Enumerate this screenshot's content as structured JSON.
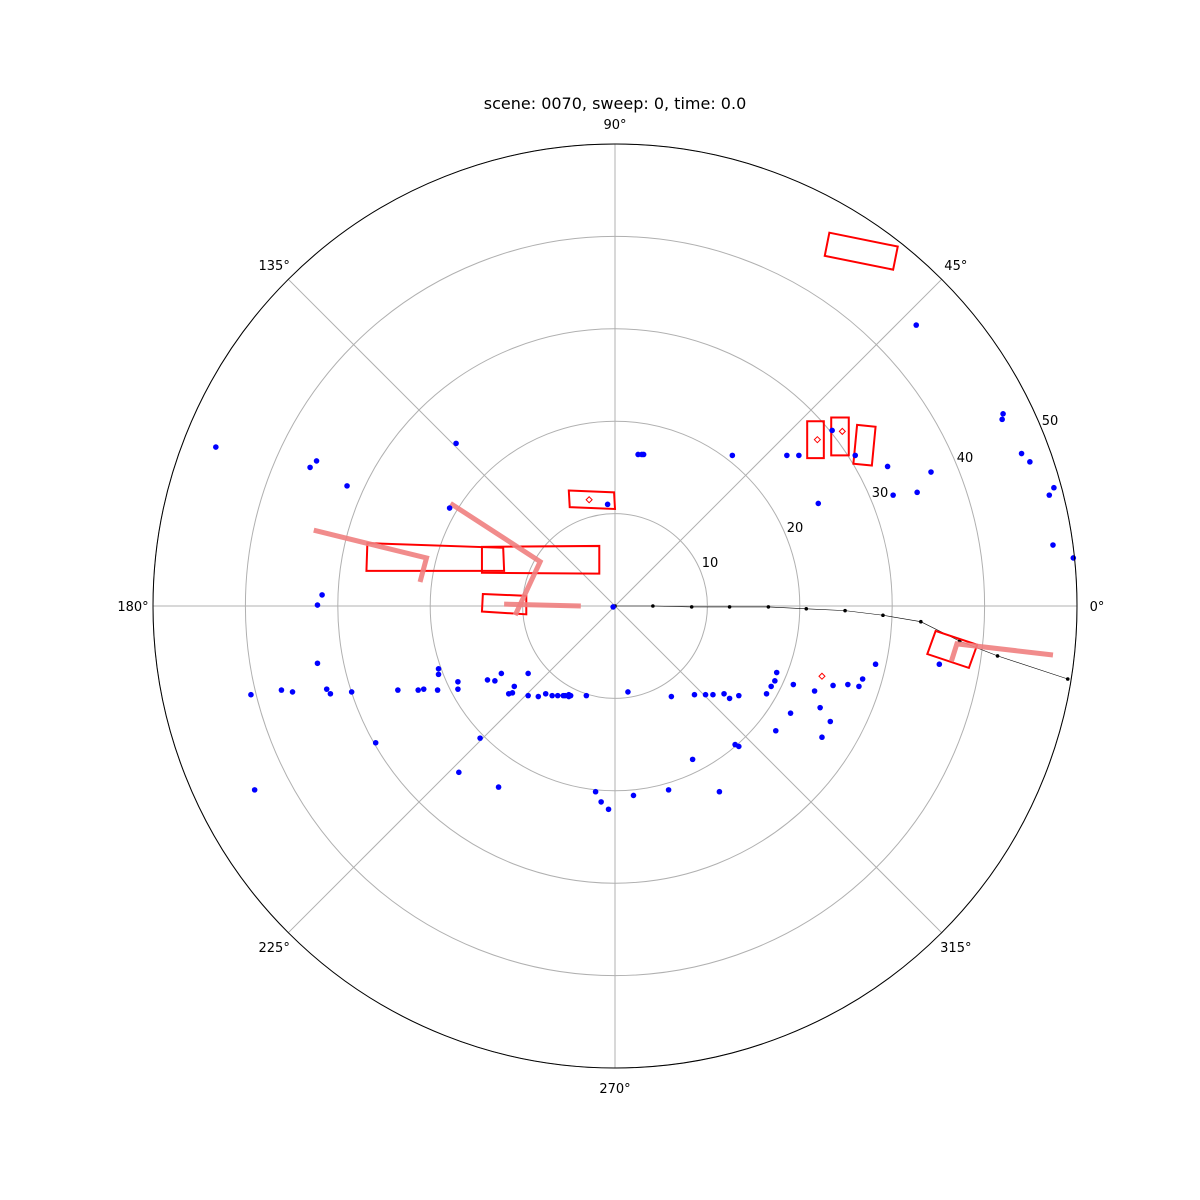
{
  "chart_data": {
    "type": "scatter",
    "projection": "polar",
    "title": "scene: 0070, sweep: 0, time: 0.0",
    "rmax": 50,
    "angle_ticks": [
      "0°",
      "45°",
      "90°",
      "135°",
      "180°",
      "225°",
      "270°",
      "315°"
    ],
    "radial_ticks": [
      "10",
      "20",
      "30",
      "40",
      "50"
    ],
    "grid": true,
    "colors": {
      "points": "#0000ff",
      "boxes": "#ff0000",
      "velocity": "#f08080",
      "ego_path": "#000000",
      "grid": "#b0b0b0"
    },
    "series": [
      {
        "kind": "radar_points",
        "points": [
          [
            -43.2,
            17.2
          ],
          [
            -33.0,
            15.0
          ],
          [
            -32.3,
            15.7
          ],
          [
            -29.0,
            13.0
          ],
          [
            -17.2,
            17.6
          ],
          [
            -17.9,
            10.6
          ],
          [
            -31.7,
            1.2
          ],
          [
            -32.2,
            0.1
          ],
          [
            -39.4,
            -9.6
          ],
          [
            -36.1,
            -9.1
          ],
          [
            -34.9,
            -9.3
          ],
          [
            -32.2,
            -6.2
          ],
          [
            -31.2,
            -9.0
          ],
          [
            -30.8,
            -9.5
          ],
          [
            -28.5,
            -9.3
          ],
          [
            -23.5,
            -9.1
          ],
          [
            -21.3,
            -9.1
          ],
          [
            -20.7,
            -9.0
          ],
          [
            -19.2,
            -9.1
          ],
          [
            -19.1,
            -6.8
          ],
          [
            -19.1,
            -7.4
          ],
          [
            -17.0,
            -8.2
          ],
          [
            -17.0,
            -9.0
          ],
          [
            -13.8,
            -8.0
          ],
          [
            -12.3,
            -7.3
          ],
          [
            -13.0,
            -8.1
          ],
          [
            -11.1,
            -9.4
          ],
          [
            -11.5,
            -9.5
          ],
          [
            -10.9,
            -8.7
          ],
          [
            -9.4,
            -9.7
          ],
          [
            -9.4,
            -7.3
          ],
          [
            -8.3,
            -9.8
          ],
          [
            -7.5,
            -9.5
          ],
          [
            -6.8,
            -9.7
          ],
          [
            -6.2,
            -9.7
          ],
          [
            -5.6,
            -9.7
          ],
          [
            -5.0,
            -9.6
          ],
          [
            -5.0,
            -9.8
          ],
          [
            -4.8,
            -9.7
          ],
          [
            -5.4,
            -9.7
          ],
          [
            -3.1,
            -9.7
          ],
          [
            -25.9,
            -14.8
          ],
          [
            -14.6,
            -14.3
          ],
          [
            -16.9,
            -18.0
          ],
          [
            -12.6,
            -19.6
          ],
          [
            -39.0,
            -19.9
          ],
          [
            -2.1,
            -20.1
          ],
          [
            -1.5,
            -21.2
          ],
          [
            -0.7,
            -22.0
          ],
          [
            1.4,
            -9.3
          ],
          [
            2.0,
            -20.5
          ],
          [
            5.8,
            -19.9
          ],
          [
            8.4,
            -16.6
          ],
          [
            6.1,
            -9.8
          ],
          [
            8.6,
            -9.6
          ],
          [
            9.8,
            -9.6
          ],
          [
            10.6,
            -9.6
          ],
          [
            11.8,
            -9.5
          ],
          [
            12.4,
            -10.0
          ],
          [
            13.4,
            -9.7
          ],
          [
            13.4,
            -15.2
          ],
          [
            13.0,
            -15.0
          ],
          [
            11.3,
            -20.1
          ],
          [
            16.4,
            -9.5
          ],
          [
            16.9,
            -8.7
          ],
          [
            17.5,
            -7.2
          ],
          [
            17.3,
            -8.1
          ],
          [
            19.3,
            -8.5
          ],
          [
            19.0,
            -11.6
          ],
          [
            17.4,
            -13.5
          ],
          [
            21.6,
            -9.2
          ],
          [
            22.2,
            -11.0
          ],
          [
            23.6,
            -8.6
          ],
          [
            22.4,
            -14.2
          ],
          [
            23.3,
            -12.5
          ],
          [
            25.2,
            -8.5
          ],
          [
            26.8,
            -7.9
          ],
          [
            26.4,
            -8.7
          ],
          [
            28.2,
            -6.3
          ],
          [
            35.1,
            -6.3
          ],
          [
            2.5,
            16.4
          ],
          [
            2.9,
            16.4
          ],
          [
            3.1,
            16.4
          ],
          [
            12.7,
            16.3
          ],
          [
            18.6,
            16.3
          ],
          [
            19.9,
            16.3
          ],
          [
            22.0,
            11.1
          ],
          [
            23.5,
            19.0
          ],
          [
            26.0,
            16.3
          ],
          [
            29.5,
            15.1
          ],
          [
            30.1,
            12.0
          ],
          [
            32.7,
            12.3
          ],
          [
            34.2,
            14.5
          ],
          [
            32.6,
            30.4
          ],
          [
            41.9,
            20.2
          ],
          [
            42.0,
            20.8
          ],
          [
            44.0,
            16.5
          ],
          [
            44.9,
            15.6
          ],
          [
            47.5,
            12.8
          ],
          [
            47.0,
            12.0
          ],
          [
            47.4,
            6.6
          ],
          [
            49.6,
            5.2
          ],
          [
            -0.8,
            11.0
          ],
          [
            -0.2,
            -0.1
          ]
        ]
      },
      {
        "kind": "object_boxes",
        "boxes": [
          [
            [
              23.2,
              40.4
            ],
            [
              30.6,
              38.9
            ],
            [
              30.1,
              36.4
            ],
            [
              22.7,
              37.9
            ]
          ],
          [
            [
              20.8,
              20.0
            ],
            [
              22.6,
              20.0
            ],
            [
              22.6,
              16.0
            ],
            [
              20.8,
              16.0
            ]
          ],
          [
            [
              23.4,
              20.4
            ],
            [
              25.3,
              20.4
            ],
            [
              25.3,
              16.3
            ],
            [
              23.4,
              16.3
            ]
          ],
          [
            [
              26.2,
              19.6
            ],
            [
              28.2,
              19.4
            ],
            [
              27.8,
              15.2
            ],
            [
              25.8,
              15.4
            ]
          ],
          [
            [
              -5.0,
              12.5
            ],
            [
              -0.1,
              12.3
            ],
            [
              0.0,
              10.5
            ],
            [
              -4.9,
              10.7
            ]
          ],
          [
            [
              -26.8,
              6.8
            ],
            [
              -12.1,
              6.3
            ],
            [
              -12.0,
              3.8
            ],
            [
              -26.9,
              3.8
            ]
          ],
          [
            [
              -14.4,
              6.4
            ],
            [
              -1.7,
              6.5
            ],
            [
              -1.7,
              3.5
            ],
            [
              -14.4,
              3.6
            ]
          ],
          [
            [
              -14.3,
              1.3
            ],
            [
              -9.6,
              1.1
            ],
            [
              -9.6,
              -0.9
            ],
            [
              -14.4,
              -0.6
            ]
          ],
          [
            [
              34.7,
              -2.7
            ],
            [
              39.2,
              -4.2
            ],
            [
              38.3,
              -6.7
            ],
            [
              33.8,
              -5.2
            ]
          ]
        ]
      },
      {
        "kind": "velocity_lines",
        "lines": [
          [
            [
              -32.6,
              8.2
            ],
            [
              -20.4,
              5.2
            ],
            [
              -21.1,
              2.6
            ]
          ],
          [
            [
              -17.8,
              11.1
            ],
            [
              -8.1,
              4.8
            ],
            [
              -10.8,
              -1.0
            ]
          ],
          [
            [
              -12.0,
              0.2
            ],
            [
              -3.7,
              0.0
            ]
          ],
          [
            [
              36.4,
              -6.0
            ],
            [
              37.0,
              -4.1
            ],
            [
              47.4,
              -5.3
            ]
          ]
        ]
      },
      {
        "kind": "ego_path",
        "points": [
          [
            0.0,
            0.0
          ],
          [
            4.1,
            0.0
          ],
          [
            8.3,
            -0.1
          ],
          [
            12.4,
            -0.1
          ],
          [
            16.6,
            -0.1
          ],
          [
            20.7,
            -0.3
          ],
          [
            24.9,
            -0.5
          ],
          [
            29.0,
            -1.0
          ],
          [
            33.1,
            -1.7
          ],
          [
            37.3,
            -3.8
          ],
          [
            41.4,
            -5.4
          ],
          [
            49.0,
            -7.9
          ]
        ]
      },
      {
        "kind": "small_markers",
        "points": [
          [
            -2.8,
            11.5
          ],
          [
            21.9,
            18.0
          ],
          [
            24.6,
            18.9
          ],
          [
            22.4,
            -7.6
          ]
        ]
      }
    ]
  }
}
